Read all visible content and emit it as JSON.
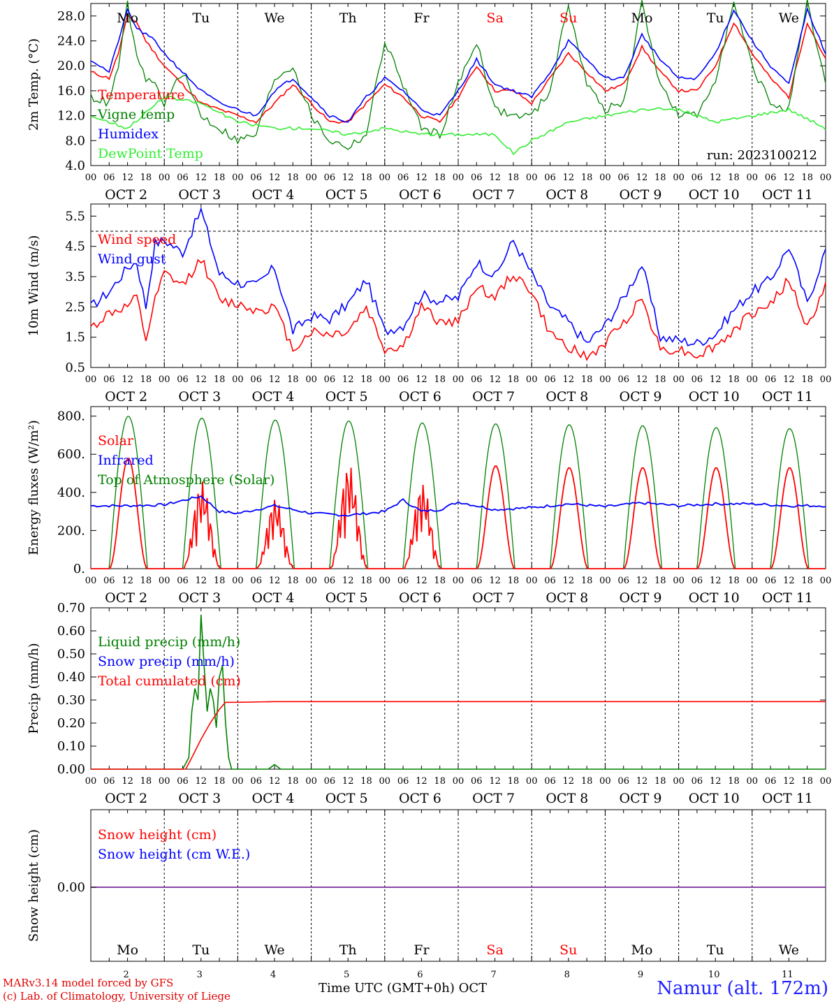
{
  "run_label": "run: 2023100212",
  "footer": {
    "model": "MARv3.14 model forced by GFS",
    "credit": "(c) Lab. of Climatology, University of Liege",
    "xaxis": "Time UTC (GMT+0h) OCT",
    "station": "Namur (alt. 172m)"
  },
  "colors": {
    "red": "#ff0000",
    "green": "#008000",
    "blue": "#0000ff",
    "lightgreen": "#33ee33",
    "purple": "#7a2a9a",
    "weekend": "#ff0000"
  },
  "days": [
    {
      "abbr": "Mo",
      "date": "OCT  2",
      "num": "2",
      "weekend": false
    },
    {
      "abbr": "Tu",
      "date": "OCT  3",
      "num": "3",
      "weekend": false
    },
    {
      "abbr": "We",
      "date": "OCT  4",
      "num": "4",
      "weekend": false
    },
    {
      "abbr": "Th",
      "date": "OCT  5",
      "num": "5",
      "weekend": false
    },
    {
      "abbr": "Fr",
      "date": "OCT  6",
      "num": "6",
      "weekend": false
    },
    {
      "abbr": "Sa",
      "date": "OCT  7",
      "num": "7",
      "weekend": true
    },
    {
      "abbr": "Su",
      "date": "OCT  8",
      "num": "8",
      "weekend": true
    },
    {
      "abbr": "Mo",
      "date": "OCT  9",
      "num": "9",
      "weekend": false
    },
    {
      "abbr": "Tu",
      "date": "OCT 10",
      "num": "10",
      "weekend": false
    },
    {
      "abbr": "We",
      "date": "OCT 11",
      "num": "11",
      "weekend": false
    }
  ],
  "hour_ticks": [
    "00",
    "06",
    "12",
    "18"
  ],
  "chart_data": [
    {
      "type": "line",
      "ylabel": "2m Temp. (°C)",
      "ylim": [
        4,
        30
      ],
      "yticks": [
        "4.0",
        "8.0",
        "12.0",
        "16.0",
        "20.0",
        "24.0",
        "28.0"
      ],
      "series": [
        {
          "name": "Temperature",
          "color": "#ff0000",
          "x": [
            0,
            6,
            9,
            12,
            15,
            18,
            21,
            24,
            30,
            36,
            42,
            48,
            54,
            60,
            66,
            72,
            78,
            84,
            90,
            96,
            102,
            108,
            114,
            120,
            126,
            132,
            138,
            144,
            150,
            156,
            162,
            168,
            174,
            180,
            186,
            192,
            198,
            204,
            210,
            216,
            222,
            228,
            234,
            240
          ],
          "values": [
            19,
            18,
            22,
            28,
            27,
            24,
            22,
            20,
            17,
            14,
            13,
            12,
            11,
            14,
            17,
            14,
            11,
            11,
            14,
            17,
            15,
            12,
            11,
            15,
            20,
            16,
            16,
            14,
            18,
            22,
            19,
            16,
            17,
            23,
            19,
            16,
            16,
            20,
            27,
            22,
            18,
            15,
            27,
            21
          ]
        },
        {
          "name": "Vigne temp",
          "color": "#008000",
          "x": [
            0,
            6,
            9,
            12,
            15,
            18,
            21,
            24,
            30,
            36,
            42,
            48,
            54,
            60,
            66,
            72,
            78,
            84,
            90,
            96,
            102,
            108,
            114,
            120,
            126,
            132,
            138,
            144,
            150,
            156,
            162,
            168,
            174,
            180,
            186,
            192,
            198,
            204,
            210,
            216,
            222,
            228,
            234,
            240
          ],
          "values": [
            15,
            14,
            20,
            30,
            21,
            18,
            17,
            14,
            19,
            12,
            10,
            8,
            9,
            18,
            20,
            12,
            8,
            7,
            9,
            24,
            17,
            10,
            9,
            17,
            24,
            13,
            12,
            12,
            16,
            30,
            17,
            13,
            14,
            30,
            17,
            12,
            12,
            18,
            30,
            20,
            14,
            13,
            30,
            17
          ]
        },
        {
          "name": "Humidex",
          "color": "#0000ff",
          "x": [
            0,
            6,
            9,
            12,
            15,
            18,
            21,
            24,
            30,
            36,
            42,
            48,
            54,
            60,
            66,
            72,
            78,
            84,
            90,
            96,
            102,
            108,
            114,
            120,
            126,
            132,
            138,
            144,
            150,
            156,
            162,
            168,
            174,
            180,
            186,
            192,
            198,
            204,
            210,
            216,
            222,
            228,
            234,
            240
          ],
          "values": [
            21,
            19,
            24,
            29,
            26,
            25,
            24,
            22,
            19,
            16,
            14,
            13,
            12,
            16,
            18,
            15,
            12,
            11,
            15,
            18,
            16,
            13,
            12,
            16,
            21,
            17,
            16,
            15,
            19,
            24,
            21,
            18,
            18,
            25,
            21,
            18,
            18,
            22,
            29,
            24,
            20,
            17,
            29,
            22
          ]
        },
        {
          "name": "DewPoint Temp",
          "color": "#33ee33",
          "x": [
            0,
            12,
            24,
            36,
            48,
            60,
            72,
            84,
            96,
            108,
            120,
            132,
            138,
            144,
            156,
            168,
            180,
            192,
            204,
            216,
            228,
            240
          ],
          "values": [
            12,
            10,
            15,
            14,
            11,
            10,
            10,
            9,
            10,
            9,
            9,
            9,
            6,
            8,
            11,
            12,
            13,
            13,
            11,
            12,
            13,
            10
          ]
        }
      ]
    },
    {
      "type": "line",
      "ylabel": "10m Wind (m/s)",
      "ylim": [
        0.5,
        5.9
      ],
      "yticks": [
        "0.5",
        "1.5",
        "2.5",
        "3.5",
        "4.5",
        "5.5"
      ],
      "ref_line": 5.0,
      "series": [
        {
          "name": "Wind speed",
          "color": "#ff0000",
          "x": [
            0,
            6,
            12,
            15,
            18,
            21,
            24,
            30,
            36,
            42,
            48,
            54,
            60,
            66,
            72,
            78,
            84,
            90,
            96,
            102,
            108,
            114,
            120,
            126,
            132,
            138,
            144,
            150,
            156,
            162,
            168,
            174,
            180,
            186,
            192,
            198,
            204,
            210,
            216,
            222,
            228,
            234,
            240
          ],
          "values": [
            1.8,
            2.3,
            2.5,
            2.8,
            1.4,
            2.7,
            3.6,
            3.2,
            4.1,
            2.7,
            2.6,
            2.4,
            2.5,
            1.1,
            1.7,
            1.6,
            1.7,
            2.5,
            1.1,
            1.2,
            2.5,
            2.0,
            2.0,
            3.2,
            2.8,
            3.6,
            3.0,
            1.6,
            1.2,
            0.8,
            1.3,
            2.0,
            2.8,
            1.1,
            1.1,
            0.9,
            1.2,
            1.7,
            2.3,
            2.6,
            3.4,
            1.8,
            3.2
          ]
        },
        {
          "name": "Wind gust",
          "color": "#0000ff",
          "x": [
            0,
            6,
            12,
            15,
            18,
            21,
            24,
            30,
            36,
            42,
            48,
            54,
            60,
            66,
            72,
            78,
            84,
            90,
            96,
            102,
            108,
            114,
            120,
            126,
            132,
            138,
            144,
            150,
            156,
            162,
            168,
            174,
            180,
            186,
            192,
            198,
            204,
            210,
            216,
            222,
            228,
            234,
            240
          ],
          "values": [
            2.5,
            3.0,
            3.8,
            4.0,
            2.5,
            4.6,
            4.7,
            4.3,
            5.7,
            3.6,
            3.3,
            3.2,
            3.8,
            1.7,
            2.2,
            2.1,
            2.6,
            3.4,
            1.7,
            1.9,
            2.9,
            2.7,
            2.8,
            4.0,
            3.5,
            4.7,
            3.6,
            2.5,
            2.0,
            1.3,
            1.9,
            2.8,
            3.9,
            1.5,
            1.4,
            1.3,
            1.6,
            2.4,
            3.0,
            3.4,
            4.5,
            2.6,
            4.4
          ]
        }
      ]
    },
    {
      "type": "line",
      "ylabel": "Energy fluxes (W/m²)",
      "ylim": [
        0,
        850
      ],
      "yticks": [
        "0.",
        "200.",
        "400.",
        "600.",
        "800."
      ],
      "series": [
        {
          "name": "Solar",
          "color": "#ff0000",
          "peaks": [
            580,
            460,
            370,
            550,
            450,
            540,
            530,
            530,
            530,
            530
          ]
        },
        {
          "name": "Infrared",
          "color": "#0000ff",
          "x": [
            0,
            12,
            24,
            36,
            42,
            48,
            60,
            72,
            84,
            96,
            102,
            108,
            114,
            120,
            132,
            144,
            156,
            168,
            180,
            192,
            204,
            216,
            228,
            240
          ],
          "values": [
            330,
            330,
            335,
            380,
            300,
            290,
            330,
            290,
            280,
            300,
            360,
            300,
            310,
            350,
            310,
            320,
            340,
            325,
            345,
            330,
            340,
            340,
            330,
            330
          ]
        },
        {
          "name": "Top of Atmosphere (Solar)",
          "color": "#008000",
          "peaks": [
            800,
            790,
            780,
            775,
            765,
            760,
            755,
            750,
            740,
            735
          ]
        }
      ]
    },
    {
      "type": "line",
      "ylabel": "Precip (mm/h)",
      "ylim": [
        0,
        0.7
      ],
      "yticks": [
        "0.00",
        "0.10",
        "0.20",
        "0.30",
        "0.40",
        "0.50",
        "0.60",
        "0.70"
      ],
      "series": [
        {
          "name": "Liquid precip (mm/h)",
          "color": "#008000",
          "x": [
            0,
            30,
            32,
            33,
            34,
            35,
            36,
            37,
            38,
            39,
            40,
            41,
            42,
            43,
            44,
            45,
            46,
            48,
            58,
            59,
            60,
            61,
            62,
            240
          ],
          "values": [
            0,
            0,
            0.05,
            0.25,
            0.35,
            0.3,
            0.67,
            0.45,
            0.25,
            0.35,
            0.3,
            0.18,
            0.4,
            0.45,
            0.2,
            0.05,
            0,
            0,
            0,
            0.01,
            0.02,
            0.01,
            0,
            0
          ]
        },
        {
          "name": "Snow precip (mm/h)",
          "color": "#0000ff",
          "x": [
            0,
            240
          ],
          "values": [
            0,
            0
          ]
        },
        {
          "name": "Total cumulated (cm)",
          "color": "#ff0000",
          "x": [
            0,
            31,
            33,
            36,
            39,
            42,
            44,
            48,
            60,
            240
          ],
          "values": [
            0,
            0,
            0.05,
            0.13,
            0.2,
            0.26,
            0.29,
            0.29,
            0.293,
            0.293
          ]
        }
      ]
    },
    {
      "type": "line",
      "ylabel": "Snow height (cm)",
      "yticks": [
        "0.00"
      ],
      "series": [
        {
          "name": "Snow height (cm)",
          "color": "#ff0000",
          "values": [
            0,
            0
          ]
        },
        {
          "name": "Snow height (cm W.E.)",
          "color": "#0000ff",
          "values": [
            0,
            0
          ]
        }
      ]
    }
  ]
}
